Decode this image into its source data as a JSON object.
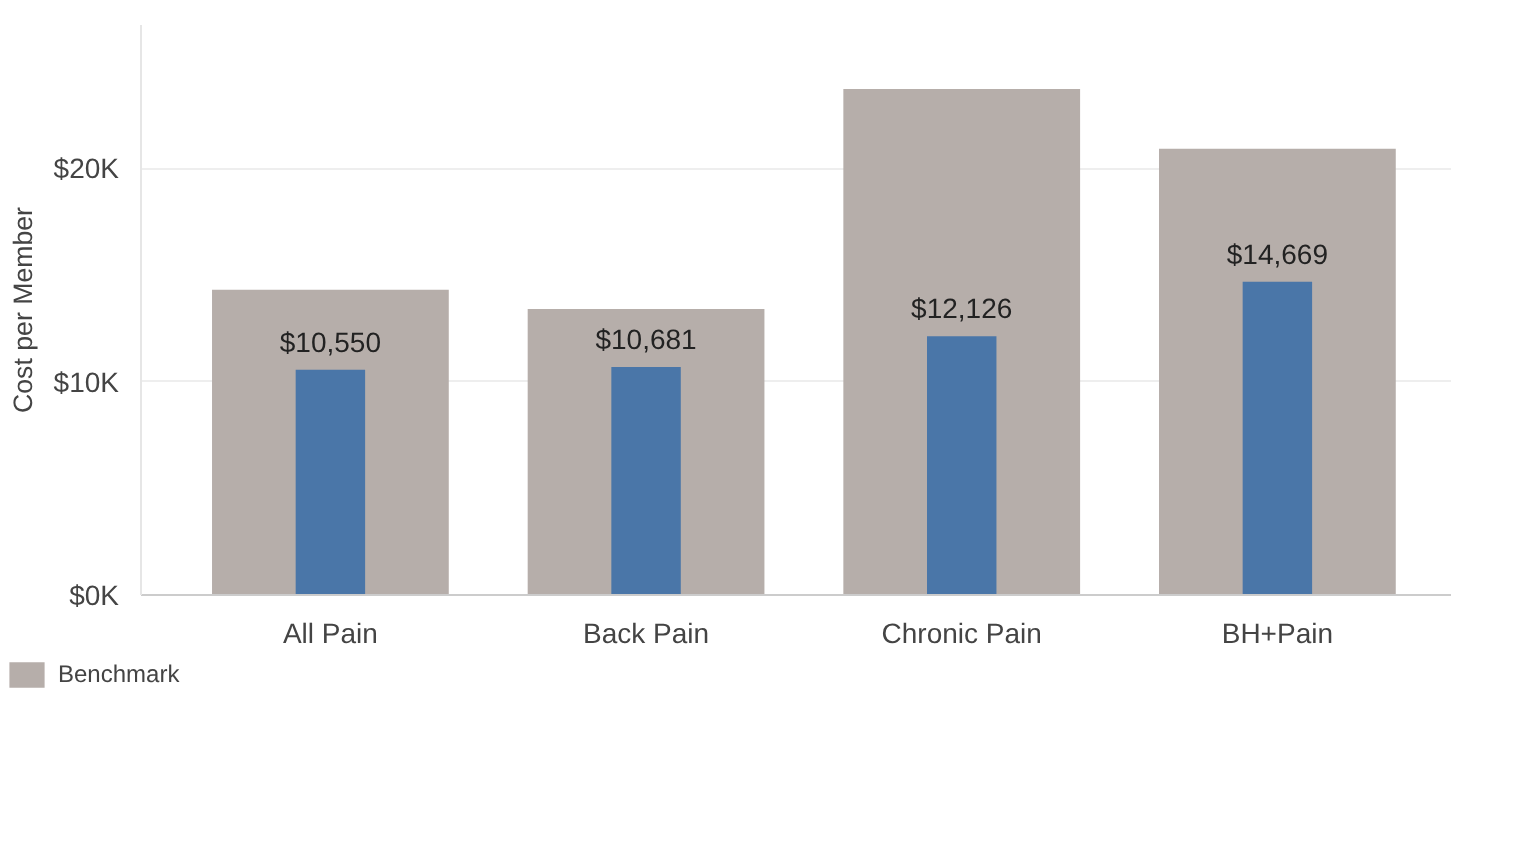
{
  "chart_data": {
    "type": "bar",
    "ylabel": "Cost per Member",
    "categories": [
      "All Pain",
      "Back Pain",
      "Chronic Pain",
      "BH+Pain"
    ],
    "series": [
      {
        "name": "Benchmark",
        "color": "#b6aeaa",
        "values": [
          14300,
          13400,
          23700,
          20900
        ]
      },
      {
        "color": "#4a76a8",
        "values": [
          10550,
          10681,
          12126,
          14669
        ],
        "value_labels": [
          "$10,550",
          "$10,681",
          "$12,126",
          "$14,669"
        ]
      }
    ],
    "ylim": [
      0,
      26700
    ],
    "yticks": [
      {
        "value": 0,
        "label": "$0K"
      },
      {
        "value": 10000,
        "label": "$10K"
      },
      {
        "value": 20000,
        "label": "$20K"
      }
    ],
    "grid": "y",
    "legend": "bottom left"
  }
}
